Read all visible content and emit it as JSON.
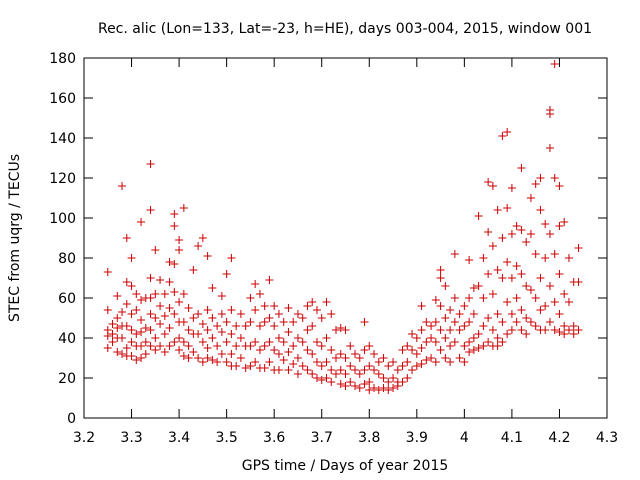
{
  "chart_data": {
    "type": "scatter",
    "title": "Rec. alic (Lon=133, Lat=-23, h=HE), days 003-004, 2015, window 001",
    "xlabel": "GPS time / Days of year 2015",
    "ylabel": "STEC from uqrg / TECUs",
    "xlim": [
      3.2,
      4.3
    ],
    "ylim": [
      0,
      180
    ],
    "xticks": [
      3.2,
      3.3,
      3.4,
      3.5,
      3.6,
      3.7,
      3.8,
      3.9,
      4.0,
      4.1,
      4.2,
      4.3
    ],
    "xtick_labels": [
      "3.2",
      "3.3",
      "3.4",
      "3.5",
      "3.6",
      "3.7",
      "3.8",
      "3.9",
      "4",
      "4.1",
      "4.2",
      "4.3"
    ],
    "yticks": [
      0,
      20,
      40,
      60,
      80,
      100,
      120,
      140,
      160,
      180
    ],
    "ytick_labels": [
      "0",
      "20",
      "40",
      "60",
      "80",
      "100",
      "120",
      "140",
      "160",
      "180"
    ],
    "grid": false,
    "marker": "+",
    "color": "#cc0000",
    "points": [
      [
        3.25,
        73
      ],
      [
        3.25,
        54
      ],
      [
        3.25,
        44
      ],
      [
        3.25,
        41
      ],
      [
        3.25,
        35
      ],
      [
        3.26,
        47
      ],
      [
        3.26,
        38
      ],
      [
        3.26,
        42
      ],
      [
        3.27,
        61
      ],
      [
        3.27,
        50
      ],
      [
        3.27,
        45
      ],
      [
        3.27,
        33
      ],
      [
        3.27,
        40
      ],
      [
        3.28,
        116
      ],
      [
        3.28,
        53
      ],
      [
        3.28,
        46
      ],
      [
        3.28,
        40
      ],
      [
        3.28,
        32
      ],
      [
        3.29,
        90
      ],
      [
        3.29,
        68
      ],
      [
        3.29,
        57
      ],
      [
        3.29,
        46
      ],
      [
        3.29,
        35
      ],
      [
        3.29,
        31
      ],
      [
        3.3,
        80
      ],
      [
        3.3,
        66
      ],
      [
        3.3,
        52
      ],
      [
        3.3,
        44
      ],
      [
        3.3,
        38
      ],
      [
        3.3,
        31
      ],
      [
        3.31,
        62
      ],
      [
        3.31,
        54
      ],
      [
        3.31,
        42
      ],
      [
        3.31,
        36
      ],
      [
        3.31,
        29
      ],
      [
        3.32,
        98
      ],
      [
        3.32,
        59
      ],
      [
        3.32,
        49
      ],
      [
        3.32,
        43
      ],
      [
        3.32,
        36
      ],
      [
        3.32,
        30
      ],
      [
        3.33,
        60
      ],
      [
        3.33,
        45
      ],
      [
        3.33,
        38
      ],
      [
        3.33,
        32
      ],
      [
        3.34,
        127
      ],
      [
        3.34,
        104
      ],
      [
        3.34,
        70
      ],
      [
        3.34,
        60
      ],
      [
        3.34,
        52
      ],
      [
        3.34,
        44
      ],
      [
        3.34,
        36
      ],
      [
        3.35,
        84
      ],
      [
        3.35,
        62
      ],
      [
        3.35,
        50
      ],
      [
        3.35,
        40
      ],
      [
        3.35,
        34
      ],
      [
        3.36,
        69
      ],
      [
        3.36,
        56
      ],
      [
        3.36,
        47
      ],
      [
        3.36,
        36
      ],
      [
        3.37,
        62
      ],
      [
        3.37,
        51
      ],
      [
        3.37,
        42
      ],
      [
        3.37,
        33
      ],
      [
        3.38,
        78
      ],
      [
        3.38,
        68
      ],
      [
        3.38,
        55
      ],
      [
        3.38,
        45
      ],
      [
        3.38,
        36
      ],
      [
        3.39,
        102
      ],
      [
        3.39,
        96
      ],
      [
        3.39,
        77
      ],
      [
        3.39,
        63
      ],
      [
        3.39,
        52
      ],
      [
        3.39,
        38
      ],
      [
        3.4,
        89
      ],
      [
        3.4,
        84
      ],
      [
        3.4,
        58
      ],
      [
        3.4,
        48
      ],
      [
        3.4,
        40
      ],
      [
        3.4,
        34
      ],
      [
        3.41,
        105
      ],
      [
        3.41,
        62
      ],
      [
        3.41,
        48
      ],
      [
        3.41,
        38
      ],
      [
        3.41,
        31
      ],
      [
        3.42,
        55
      ],
      [
        3.42,
        44
      ],
      [
        3.42,
        36
      ],
      [
        3.42,
        30
      ],
      [
        3.43,
        74
      ],
      [
        3.43,
        50
      ],
      [
        3.43,
        42
      ],
      [
        3.43,
        33
      ],
      [
        3.44,
        86
      ],
      [
        3.44,
        52
      ],
      [
        3.44,
        42
      ],
      [
        3.44,
        30
      ],
      [
        3.45,
        90
      ],
      [
        3.45,
        47
      ],
      [
        3.45,
        38
      ],
      [
        3.45,
        28
      ],
      [
        3.46,
        81
      ],
      [
        3.46,
        54
      ],
      [
        3.46,
        44
      ],
      [
        3.46,
        35
      ],
      [
        3.46,
        30
      ],
      [
        3.47,
        65
      ],
      [
        3.47,
        50
      ],
      [
        3.47,
        40
      ],
      [
        3.47,
        29
      ],
      [
        3.48,
        46
      ],
      [
        3.48,
        36
      ],
      [
        3.48,
        28
      ],
      [
        3.49,
        61
      ],
      [
        3.49,
        52
      ],
      [
        3.49,
        43
      ],
      [
        3.49,
        32
      ],
      [
        3.5,
        72
      ],
      [
        3.5,
        48
      ],
      [
        3.5,
        38
      ],
      [
        3.5,
        28
      ],
      [
        3.51,
        80
      ],
      [
        3.51,
        54
      ],
      [
        3.51,
        42
      ],
      [
        3.51,
        32
      ],
      [
        3.51,
        26
      ],
      [
        3.52,
        46
      ],
      [
        3.52,
        36
      ],
      [
        3.52,
        26
      ],
      [
        3.53,
        52
      ],
      [
        3.53,
        40
      ],
      [
        3.53,
        30
      ],
      [
        3.54,
        46
      ],
      [
        3.54,
        36
      ],
      [
        3.54,
        25
      ],
      [
        3.55,
        60
      ],
      [
        3.55,
        48
      ],
      [
        3.55,
        36
      ],
      [
        3.55,
        26
      ],
      [
        3.56,
        67
      ],
      [
        3.56,
        54
      ],
      [
        3.56,
        38
      ],
      [
        3.56,
        28
      ],
      [
        3.57,
        62
      ],
      [
        3.57,
        46
      ],
      [
        3.57,
        34
      ],
      [
        3.57,
        25
      ],
      [
        3.58,
        56
      ],
      [
        3.58,
        48
      ],
      [
        3.58,
        36
      ],
      [
        3.58,
        25
      ],
      [
        3.59,
        69
      ],
      [
        3.59,
        50
      ],
      [
        3.59,
        38
      ],
      [
        3.59,
        28
      ],
      [
        3.6,
        56
      ],
      [
        3.6,
        46
      ],
      [
        3.6,
        34
      ],
      [
        3.6,
        24
      ],
      [
        3.61,
        52
      ],
      [
        3.61,
        40
      ],
      [
        3.61,
        32
      ],
      [
        3.61,
        24
      ],
      [
        3.62,
        48
      ],
      [
        3.62,
        38
      ],
      [
        3.62,
        29
      ],
      [
        3.63,
        55
      ],
      [
        3.63,
        43
      ],
      [
        3.63,
        33
      ],
      [
        3.63,
        24
      ],
      [
        3.64,
        48
      ],
      [
        3.64,
        36
      ],
      [
        3.64,
        27
      ],
      [
        3.65,
        52
      ],
      [
        3.65,
        40
      ],
      [
        3.65,
        30
      ],
      [
        3.65,
        22
      ],
      [
        3.66,
        50
      ],
      [
        3.66,
        38
      ],
      [
        3.66,
        26
      ],
      [
        3.67,
        56
      ],
      [
        3.67,
        44
      ],
      [
        3.67,
        34
      ],
      [
        3.67,
        24
      ],
      [
        3.68,
        58
      ],
      [
        3.68,
        46
      ],
      [
        3.68,
        32
      ],
      [
        3.68,
        22
      ],
      [
        3.69,
        54
      ],
      [
        3.69,
        38
      ],
      [
        3.69,
        28
      ],
      [
        3.69,
        20
      ],
      [
        3.7,
        50
      ],
      [
        3.7,
        36
      ],
      [
        3.7,
        26
      ],
      [
        3.7,
        19
      ],
      [
        3.71,
        58
      ],
      [
        3.71,
        40
      ],
      [
        3.71,
        28
      ],
      [
        3.71,
        20
      ],
      [
        3.72,
        52
      ],
      [
        3.72,
        34
      ],
      [
        3.72,
        24
      ],
      [
        3.72,
        18
      ],
      [
        3.73,
        44
      ],
      [
        3.73,
        30
      ],
      [
        3.73,
        22
      ],
      [
        3.74,
        45
      ],
      [
        3.74,
        32
      ],
      [
        3.74,
        24
      ],
      [
        3.74,
        17
      ],
      [
        3.75,
        44
      ],
      [
        3.75,
        30
      ],
      [
        3.75,
        22
      ],
      [
        3.75,
        16
      ],
      [
        3.76,
        36
      ],
      [
        3.76,
        26
      ],
      [
        3.76,
        18
      ],
      [
        3.77,
        32
      ],
      [
        3.77,
        24
      ],
      [
        3.77,
        16
      ],
      [
        3.78,
        30
      ],
      [
        3.78,
        22
      ],
      [
        3.78,
        15
      ],
      [
        3.79,
        48
      ],
      [
        3.79,
        34
      ],
      [
        3.79,
        24
      ],
      [
        3.79,
        17
      ],
      [
        3.8,
        36
      ],
      [
        3.8,
        26
      ],
      [
        3.8,
        18
      ],
      [
        3.8,
        14
      ],
      [
        3.81,
        32
      ],
      [
        3.81,
        24
      ],
      [
        3.81,
        15
      ],
      [
        3.82,
        28
      ],
      [
        3.82,
        22
      ],
      [
        3.82,
        14
      ],
      [
        3.83,
        30
      ],
      [
        3.83,
        20
      ],
      [
        3.83,
        15
      ],
      [
        3.84,
        26
      ],
      [
        3.84,
        18
      ],
      [
        3.84,
        14
      ],
      [
        3.85,
        28
      ],
      [
        3.85,
        20
      ],
      [
        3.85,
        15
      ],
      [
        3.86,
        24
      ],
      [
        3.86,
        18
      ],
      [
        3.86,
        16
      ],
      [
        3.87,
        34
      ],
      [
        3.87,
        26
      ],
      [
        3.87,
        18
      ],
      [
        3.88,
        36
      ],
      [
        3.88,
        28
      ],
      [
        3.88,
        20
      ],
      [
        3.89,
        42
      ],
      [
        3.89,
        34
      ],
      [
        3.89,
        24
      ],
      [
        3.9,
        40
      ],
      [
        3.9,
        32
      ],
      [
        3.9,
        26
      ],
      [
        3.91,
        56
      ],
      [
        3.91,
        44
      ],
      [
        3.91,
        35
      ],
      [
        3.91,
        27
      ],
      [
        3.92,
        48
      ],
      [
        3.92,
        38
      ],
      [
        3.92,
        29
      ],
      [
        3.93,
        46
      ],
      [
        3.93,
        40
      ],
      [
        3.93,
        30
      ],
      [
        3.94,
        59
      ],
      [
        3.94,
        48
      ],
      [
        3.94,
        38
      ],
      [
        3.94,
        28
      ],
      [
        3.95,
        74
      ],
      [
        3.95,
        70
      ],
      [
        3.95,
        56
      ],
      [
        3.95,
        44
      ],
      [
        3.95,
        34
      ],
      [
        3.96,
        66
      ],
      [
        3.96,
        50
      ],
      [
        3.96,
        40
      ],
      [
        3.96,
        30
      ],
      [
        3.97,
        54
      ],
      [
        3.97,
        44
      ],
      [
        3.97,
        36
      ],
      [
        3.97,
        28
      ],
      [
        3.98,
        82
      ],
      [
        3.98,
        60
      ],
      [
        3.98,
        48
      ],
      [
        3.98,
        38
      ],
      [
        3.99,
        52
      ],
      [
        3.99,
        44
      ],
      [
        3.99,
        30
      ],
      [
        4.0,
        56
      ],
      [
        4.0,
        46
      ],
      [
        4.0,
        36
      ],
      [
        4.0,
        28
      ],
      [
        4.01,
        79
      ],
      [
        4.01,
        60
      ],
      [
        4.01,
        48
      ],
      [
        4.01,
        38
      ],
      [
        4.01,
        33
      ],
      [
        4.02,
        65
      ],
      [
        4.02,
        52
      ],
      [
        4.02,
        40
      ],
      [
        4.02,
        34
      ],
      [
        4.03,
        101
      ],
      [
        4.03,
        66
      ],
      [
        4.03,
        42
      ],
      [
        4.03,
        35
      ],
      [
        4.04,
        80
      ],
      [
        4.04,
        60
      ],
      [
        4.04,
        46
      ],
      [
        4.04,
        36
      ],
      [
        4.05,
        118
      ],
      [
        4.05,
        93
      ],
      [
        4.05,
        72
      ],
      [
        4.05,
        50
      ],
      [
        4.05,
        38
      ],
      [
        4.06,
        116
      ],
      [
        4.06,
        86
      ],
      [
        4.06,
        62
      ],
      [
        4.06,
        44
      ],
      [
        4.06,
        36
      ],
      [
        4.07,
        104
      ],
      [
        4.07,
        74
      ],
      [
        4.07,
        52
      ],
      [
        4.07,
        40
      ],
      [
        4.07,
        36
      ],
      [
        4.08,
        141
      ],
      [
        4.08,
        90
      ],
      [
        4.08,
        70
      ],
      [
        4.08,
        48
      ],
      [
        4.08,
        38
      ],
      [
        4.09,
        143
      ],
      [
        4.09,
        105
      ],
      [
        4.09,
        78
      ],
      [
        4.09,
        58
      ],
      [
        4.09,
        42
      ],
      [
        4.1,
        115
      ],
      [
        4.1,
        92
      ],
      [
        4.1,
        70
      ],
      [
        4.1,
        52
      ],
      [
        4.1,
        44
      ],
      [
        4.11,
        96
      ],
      [
        4.11,
        76
      ],
      [
        4.11,
        60
      ],
      [
        4.11,
        48
      ],
      [
        4.12,
        125
      ],
      [
        4.12,
        94
      ],
      [
        4.12,
        72
      ],
      [
        4.12,
        54
      ],
      [
        4.12,
        44
      ],
      [
        4.13,
        88
      ],
      [
        4.13,
        66
      ],
      [
        4.13,
        50
      ],
      [
        4.13,
        42
      ],
      [
        4.14,
        110
      ],
      [
        4.14,
        92
      ],
      [
        4.14,
        64
      ],
      [
        4.14,
        48
      ],
      [
        4.15,
        117
      ],
      [
        4.15,
        82
      ],
      [
        4.15,
        60
      ],
      [
        4.15,
        46
      ],
      [
        4.16,
        120
      ],
      [
        4.16,
        104
      ],
      [
        4.16,
        70
      ],
      [
        4.16,
        54
      ],
      [
        4.16,
        44
      ],
      [
        4.17,
        97
      ],
      [
        4.17,
        80
      ],
      [
        4.17,
        56
      ],
      [
        4.17,
        44
      ],
      [
        4.18,
        154
      ],
      [
        4.18,
        152
      ],
      [
        4.18,
        135
      ],
      [
        4.18,
        92
      ],
      [
        4.18,
        66
      ],
      [
        4.18,
        48
      ],
      [
        4.19,
        177
      ],
      [
        4.19,
        120
      ],
      [
        4.19,
        82
      ],
      [
        4.19,
        58
      ],
      [
        4.19,
        44
      ],
      [
        4.2,
        116
      ],
      [
        4.2,
        96
      ],
      [
        4.2,
        72
      ],
      [
        4.2,
        52
      ],
      [
        4.2,
        43
      ],
      [
        4.21,
        98
      ],
      [
        4.21,
        62
      ],
      [
        4.21,
        46
      ],
      [
        4.21,
        42
      ],
      [
        4.22,
        80
      ],
      [
        4.22,
        58
      ],
      [
        4.22,
        44
      ],
      [
        4.23,
        68
      ],
      [
        4.23,
        46
      ],
      [
        4.23,
        42
      ],
      [
        4.24,
        85
      ],
      [
        4.24,
        68
      ],
      [
        4.24,
        44
      ]
    ]
  }
}
